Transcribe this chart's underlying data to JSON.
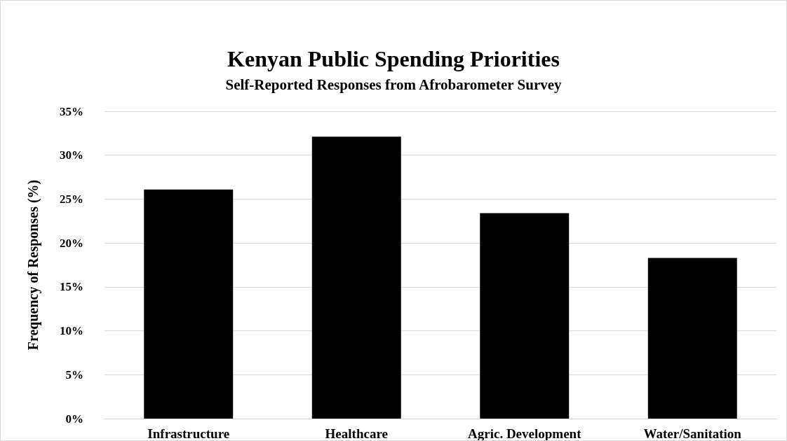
{
  "chart_data": {
    "type": "bar",
    "title": "Kenyan Public Spending Priorities",
    "subtitle": "Self-Reported Responses from Afrobarometer Survey",
    "ylabel": "Frequency of Responses (%)",
    "categories": [
      "Infrastructure",
      "Healthcare",
      "Agric. Development",
      "Water/Sanitation"
    ],
    "values": [
      26.1,
      32.1,
      23.4,
      18.3
    ],
    "color": "#000000",
    "ylim": [
      0,
      35
    ],
    "yticks": [
      {
        "value": 0,
        "label": "0%"
      },
      {
        "value": 5,
        "label": "5%"
      },
      {
        "value": 10,
        "label": "10%"
      },
      {
        "value": 15,
        "label": "15%"
      },
      {
        "value": 20,
        "label": "20%"
      },
      {
        "value": 25,
        "label": "25%"
      },
      {
        "value": 30,
        "label": "30%"
      },
      {
        "value": 35,
        "label": "35%"
      }
    ],
    "grid": "y"
  }
}
